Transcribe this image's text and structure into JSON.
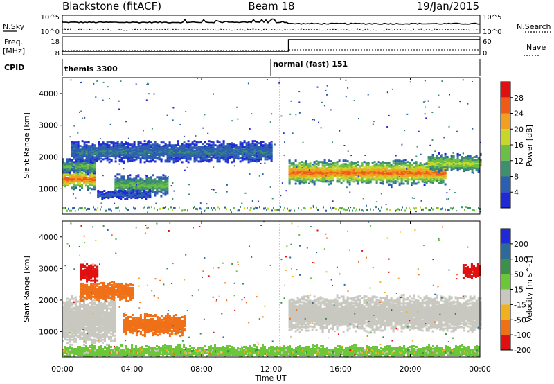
{
  "header": {
    "station": "Blackstone (fitACF)",
    "beam": "Beam 18",
    "date": "19/Jan/2015"
  },
  "strip1": {
    "left_label": "N.Sky",
    "right_label": "N.Search",
    "left_ticks": [
      "10^5",
      "10^0"
    ],
    "right_ticks": [
      "10^5",
      "10^0"
    ]
  },
  "strip2": {
    "left_label_line1": "Freq.",
    "left_label_line2": "[MHz]",
    "right_label": "Nave",
    "left_ticks": [
      "18",
      "8"
    ],
    "right_ticks": [
      "60",
      "0"
    ],
    "freq_step_time": "13:00"
  },
  "cpid": {
    "label": "CPID",
    "segments": [
      {
        "start": "00:00",
        "text": "themis 3300"
      },
      {
        "start": "12:30",
        "text": "normal (fast) 151"
      }
    ]
  },
  "xaxis": {
    "label": "Time UT",
    "ticks": [
      "00:00",
      "04:00",
      "08:00",
      "12:00",
      "16:00",
      "20:00",
      "00:00"
    ]
  },
  "chart_data": [
    {
      "type": "heatmap",
      "quantity": "Power",
      "ylabel": "Slant Range [km]",
      "yticks": [
        "1000",
        "2000",
        "3000",
        "4000"
      ],
      "ylim": [
        200,
        4500
      ],
      "xlim_hours": [
        0,
        24
      ],
      "colorbar": {
        "label": "Power [dB]",
        "ticks": [
          "4",
          "8",
          "12",
          "16",
          "20",
          "24",
          "28"
        ],
        "colors": [
          "#1f2ad6",
          "#2c5fb0",
          "#3d8f6e",
          "#6cbf44",
          "#c8d62a",
          "#f0a020",
          "#ee5a18",
          "#e01010"
        ]
      },
      "bands": [
        {
          "t": [
            0,
            1.8
          ],
          "center": 1350,
          "width": 350,
          "peak": 26
        },
        {
          "t": [
            0,
            1.8
          ],
          "center": 1750,
          "width": 250,
          "peak": 14
        },
        {
          "t": [
            0.5,
            12
          ],
          "center": 2200,
          "width": 350,
          "peak": 8
        },
        {
          "t": [
            3,
            6
          ],
          "center": 1150,
          "width": 350,
          "peak": 14
        },
        {
          "t": [
            2,
            5
          ],
          "center": 850,
          "width": 150,
          "peak": 6
        },
        {
          "t": [
            13,
            22
          ],
          "center": 1550,
          "width": 400,
          "peak": 26
        },
        {
          "t": [
            21,
            24
          ],
          "center": 1850,
          "width": 300,
          "peak": 18
        }
      ]
    },
    {
      "type": "heatmap",
      "quantity": "Velocity",
      "ylabel": "Slant Range [km]",
      "yticks": [
        "1000",
        "2000",
        "3000",
        "4000"
      ],
      "ylim": [
        200,
        4500
      ],
      "xlim_hours": [
        0,
        24
      ],
      "colorbar": {
        "label": "Velocity [m s^-1]",
        "ticks": [
          "200",
          "100",
          "50",
          "15",
          "-15",
          "-50",
          "-100",
          "-200"
        ],
        "colors": [
          "#1f2ad6",
          "#2c6a9a",
          "#3d8f4e",
          "#6cc63a",
          "#c8c8c0",
          "#f0b020",
          "#f07018",
          "#e01010"
        ]
      },
      "bands": [
        {
          "t": [
            0,
            3
          ],
          "center": 1400,
          "width": 800,
          "value": 0
        },
        {
          "t": [
            1,
            4
          ],
          "center": 2300,
          "width": 300,
          "value": -60
        },
        {
          "t": [
            3.5,
            7
          ],
          "center": 1250,
          "width": 350,
          "value": -80
        },
        {
          "t": [
            1,
            2
          ],
          "center": 2900,
          "width": 300,
          "value": -220
        },
        {
          "t": [
            13,
            24
          ],
          "center": 1600,
          "width": 600,
          "value": 0
        },
        {
          "t": [
            23,
            24
          ],
          "center": 2950,
          "width": 250,
          "value": -220
        },
        {
          "t": [
            0,
            24
          ],
          "center": 400,
          "width": 200,
          "value": 40
        }
      ]
    }
  ]
}
